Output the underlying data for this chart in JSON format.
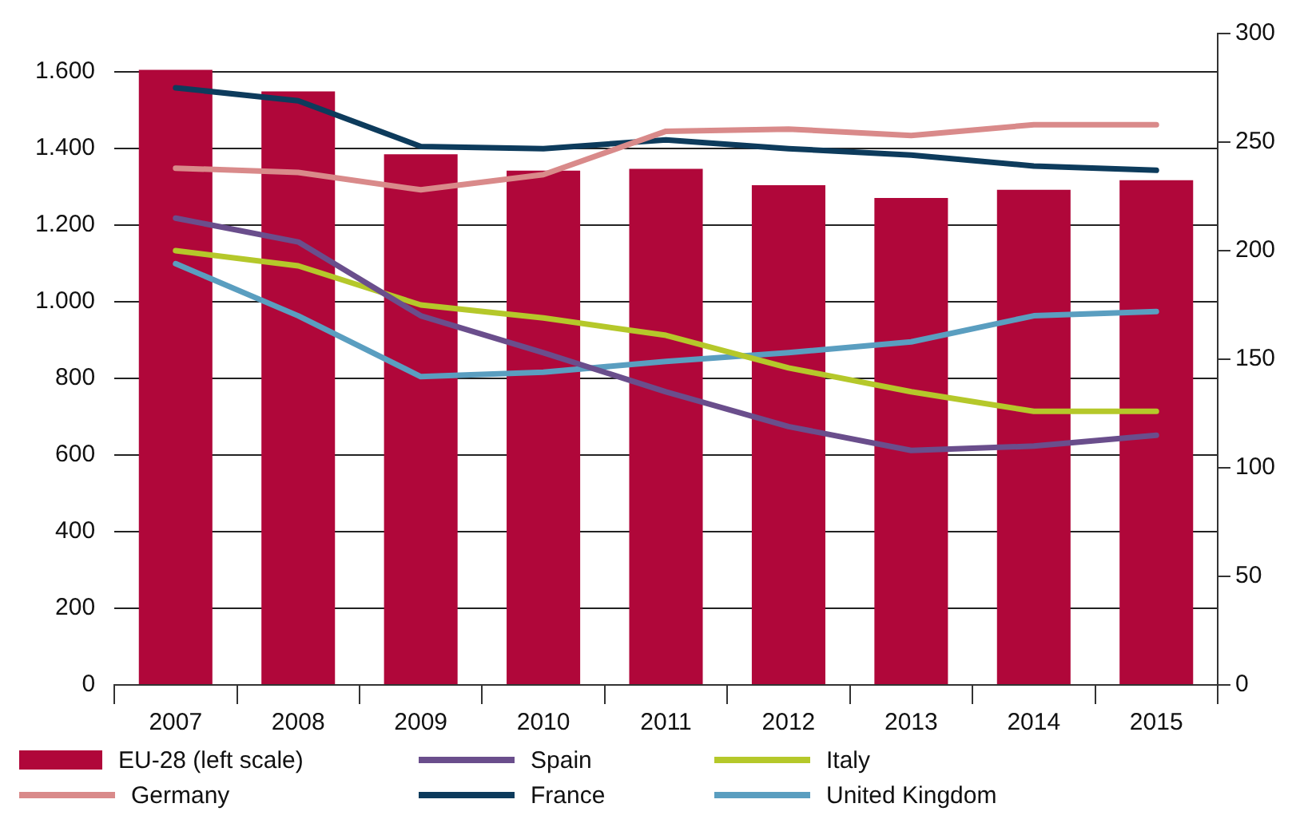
{
  "chart_data": {
    "type": "bar",
    "categories": [
      "2007",
      "2008",
      "2009",
      "2010",
      "2011",
      "2012",
      "2013",
      "2014",
      "2015"
    ],
    "series": [
      {
        "name": "EU-28 (left scale)",
        "color": "#b0073a",
        "values": [
          1605,
          1549,
          1385,
          1342,
          1347,
          1304,
          1271,
          1292,
          1317
        ]
      },
      {
        "name": "Germany",
        "type": "line",
        "axis": "y2",
        "color": "#d98a8a",
        "values": [
          238,
          236,
          228,
          235,
          255,
          256,
          253,
          258,
          258
        ]
      },
      {
        "name": "Spain",
        "type": "line",
        "axis": "y2",
        "color": "#6a4e8c",
        "values": [
          215,
          204,
          170,
          153,
          135,
          119,
          108,
          110,
          115
        ]
      },
      {
        "name": "France",
        "type": "line",
        "axis": "y2",
        "color": "#0d3b5c",
        "values": [
          275,
          269,
          248,
          247,
          251,
          247,
          244,
          239,
          237
        ]
      },
      {
        "name": "Italy",
        "type": "line",
        "axis": "y2",
        "color": "#b5c82a",
        "values": [
          200,
          193,
          175,
          169,
          161,
          146,
          135,
          126,
          126
        ]
      },
      {
        "name": "United Kingdom",
        "type": "line",
        "axis": "y2",
        "color": "#5a9ec0",
        "values": [
          194,
          170,
          142,
          144,
          149,
          153,
          158,
          170,
          172
        ]
      }
    ],
    "ylim": [
      0,
      1700
    ],
    "yticks": [
      {
        "value": 0,
        "label": "0"
      },
      {
        "value": 200,
        "label": "200"
      },
      {
        "value": 400,
        "label": "400"
      },
      {
        "value": 600,
        "label": "600"
      },
      {
        "value": 800,
        "label": "800"
      },
      {
        "value": 1000,
        "label": "1.000"
      },
      {
        "value": 1200,
        "label": "1.200"
      },
      {
        "value": 1400,
        "label": "1.400"
      },
      {
        "value": 1600,
        "label": "1.600"
      }
    ],
    "y2lim": [
      0,
      300
    ],
    "y2ticks": [
      0,
      50,
      100,
      150,
      200,
      250,
      300
    ],
    "grid": "y",
    "legend": "bottom",
    "marker": "none",
    "line_style": "solid"
  }
}
